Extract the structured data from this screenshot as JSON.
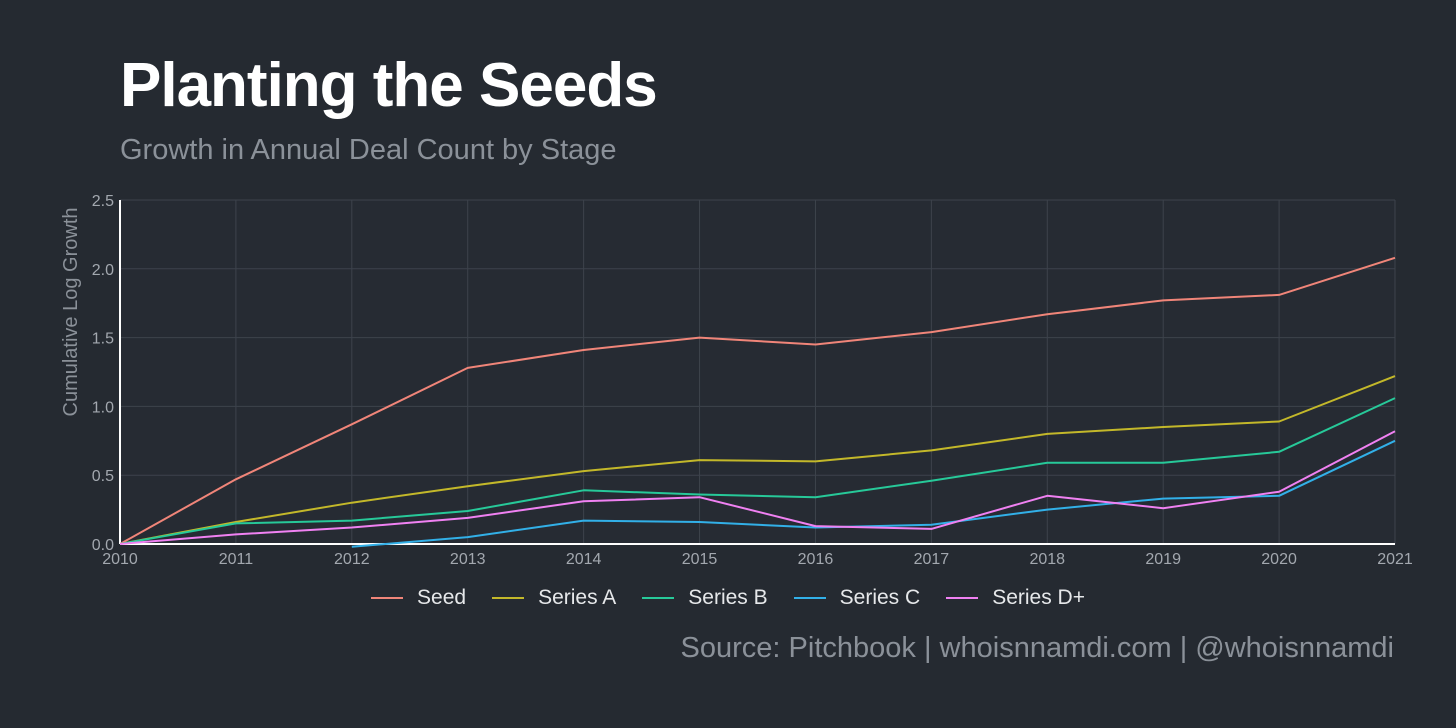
{
  "header": {
    "title": "Planting the Seeds",
    "subtitle": "Growth in Annual Deal Count by Stage"
  },
  "source": "Source: Pitchbook | whoisnnamdi.com | @whoisnnamdi",
  "chart_data": {
    "type": "line",
    "title": "Planting the Seeds",
    "subtitle": "Growth in Annual Deal Count by Stage",
    "xlabel": "",
    "ylabel": "Cumulative Log Growth",
    "x": [
      2010,
      2011,
      2012,
      2013,
      2014,
      2015,
      2016,
      2017,
      2018,
      2019,
      2020,
      2021
    ],
    "xlim": [
      2010,
      2021
    ],
    "ylim": [
      0,
      2.5
    ],
    "yticks": [
      0.0,
      0.5,
      1.0,
      1.5,
      2.0,
      2.5
    ],
    "ytick_labels": [
      "0.0",
      "0.5",
      "1.0",
      "1.5",
      "2.0",
      "2.5"
    ],
    "grid": true,
    "legend_position": "bottom",
    "series": [
      {
        "name": "Seed",
        "color": "#f08579",
        "values": [
          0.0,
          0.47,
          0.87,
          1.28,
          1.41,
          1.5,
          1.45,
          1.54,
          1.67,
          1.77,
          1.81,
          2.08
        ]
      },
      {
        "name": "Series A",
        "color": "#c3b82a",
        "values": [
          0.0,
          0.16,
          0.3,
          0.42,
          0.53,
          0.61,
          0.6,
          0.68,
          0.8,
          0.85,
          0.89,
          1.22
        ]
      },
      {
        "name": "Series B",
        "color": "#27c999",
        "values": [
          0.0,
          0.15,
          0.17,
          0.24,
          0.39,
          0.36,
          0.34,
          0.46,
          0.59,
          0.59,
          0.67,
          1.06
        ]
      },
      {
        "name": "Series C",
        "color": "#32b0e8",
        "values": [
          null,
          null,
          -0.02,
          0.05,
          0.17,
          0.16,
          0.12,
          0.14,
          0.25,
          0.33,
          0.35,
          0.75
        ]
      },
      {
        "name": "Series D+",
        "color": "#f081f2",
        "values": [
          0.0,
          0.07,
          0.12,
          0.19,
          0.31,
          0.34,
          0.13,
          0.11,
          0.35,
          0.26,
          0.38,
          0.82
        ]
      }
    ]
  }
}
